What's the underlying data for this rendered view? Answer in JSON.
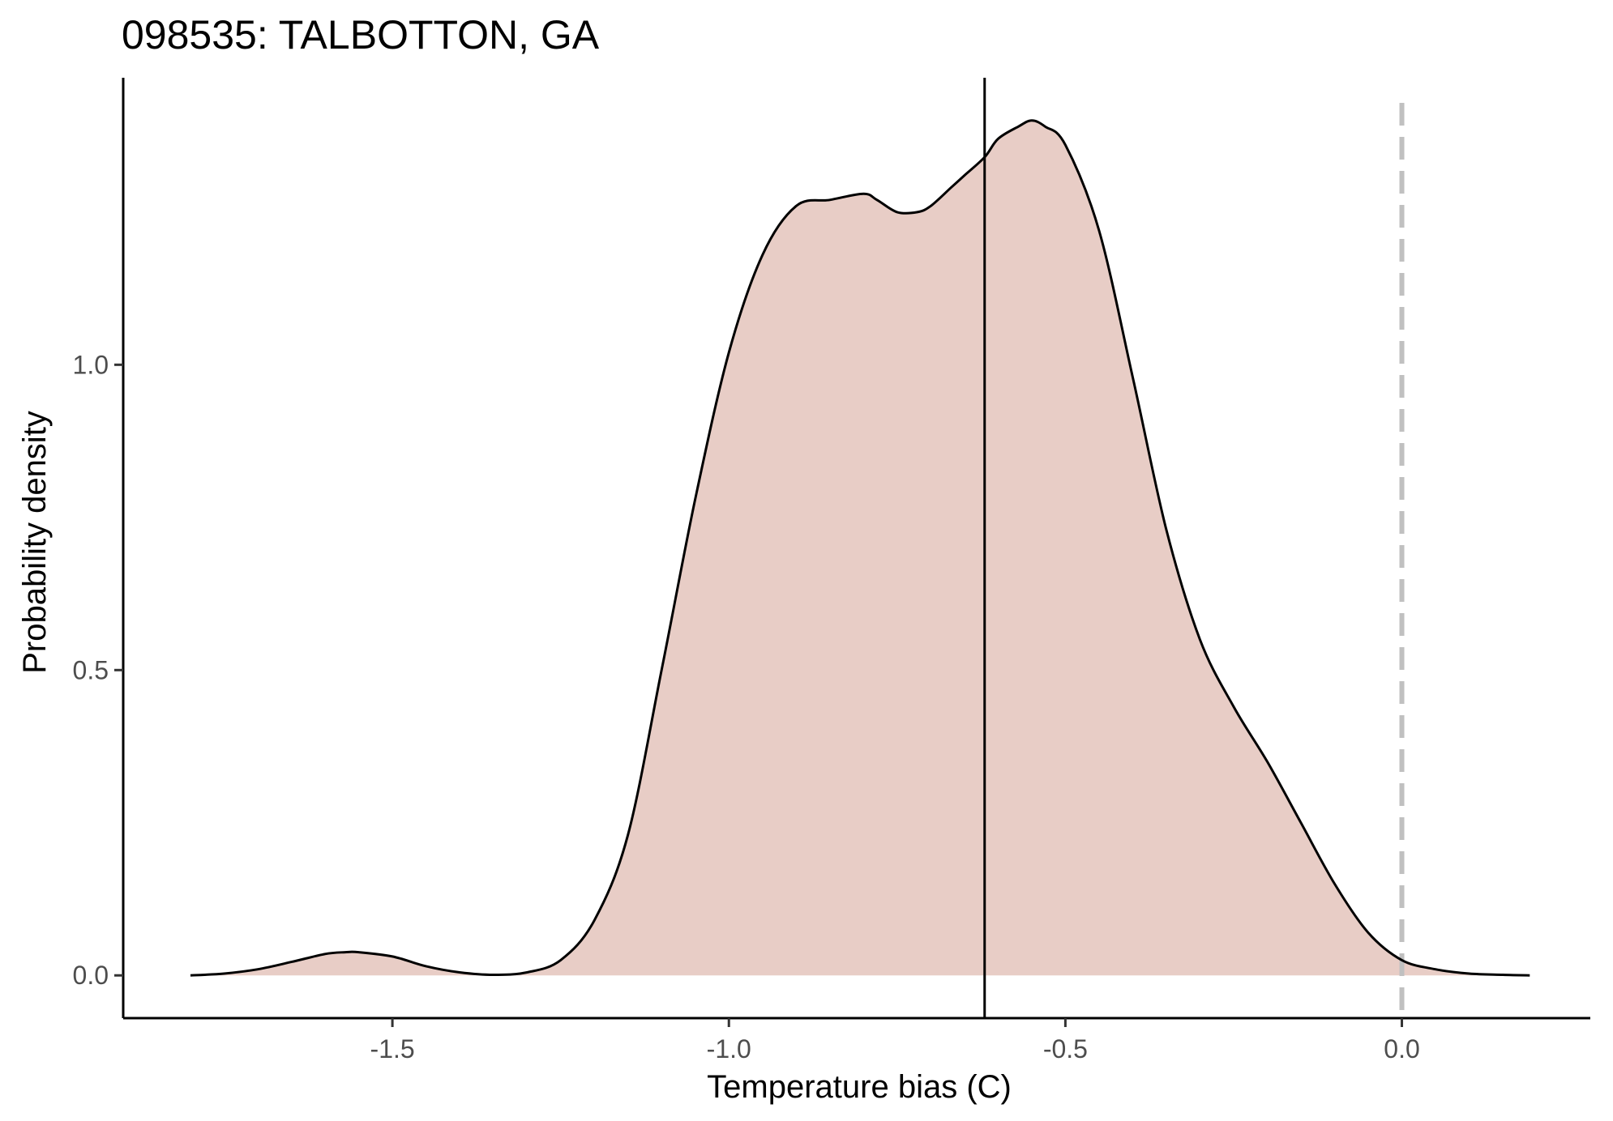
{
  "chart_data": {
    "type": "area",
    "title": "098535: TALBOTTON, GA",
    "xlabel": "Temperature bias (C)",
    "ylabel": "Probability density",
    "xlim": [
      -1.9,
      0.28
    ],
    "ylim": [
      -0.07,
      1.47
    ],
    "x_ticks": [
      -1.5,
      -1.0,
      -0.5,
      0.0
    ],
    "x_tick_labels": [
      "-1.5",
      "-1.0",
      "-0.5",
      "0.0"
    ],
    "y_ticks": [
      0.0,
      0.5,
      1.0
    ],
    "y_tick_labels": [
      "0.0",
      "0.5",
      "1.0"
    ],
    "grid": false,
    "legend": "none",
    "fill_color": "#e8cdc6",
    "line_color": "#000000",
    "reference_lines": [
      {
        "axis": "x",
        "value": -0.62,
        "style": "solid",
        "color": "#000000"
      },
      {
        "axis": "x",
        "value": 0.0,
        "style": "dashed",
        "color": "#c0c0c0"
      }
    ],
    "series": [
      {
        "x": [
          -1.8,
          -1.75,
          -1.7,
          -1.65,
          -1.6,
          -1.57,
          -1.55,
          -1.5,
          -1.45,
          -1.4,
          -1.35,
          -1.3,
          -1.25,
          -1.2,
          -1.15,
          -1.1,
          -1.05,
          -1.0,
          -0.95,
          -0.9,
          -0.85,
          -0.8,
          -0.78,
          -0.75,
          -0.72,
          -0.7,
          -0.67,
          -0.65,
          -0.62,
          -0.6,
          -0.57,
          -0.55,
          -0.53,
          -0.5,
          -0.45,
          -0.4,
          -0.35,
          -0.3,
          -0.25,
          -0.2,
          -0.15,
          -0.1,
          -0.05,
          0.0,
          0.05,
          0.1,
          0.15,
          0.19
        ],
        "y": [
          0.0,
          0.003,
          0.01,
          0.022,
          0.035,
          0.038,
          0.038,
          0.031,
          0.015,
          0.005,
          0.001,
          0.005,
          0.025,
          0.09,
          0.23,
          0.5,
          0.78,
          1.02,
          1.18,
          1.26,
          1.27,
          1.28,
          1.27,
          1.25,
          1.25,
          1.26,
          1.29,
          1.31,
          1.34,
          1.37,
          1.39,
          1.4,
          1.39,
          1.36,
          1.22,
          0.98,
          0.73,
          0.55,
          0.44,
          0.35,
          0.25,
          0.15,
          0.07,
          0.025,
          0.01,
          0.003,
          0.001,
          0.0
        ]
      }
    ]
  }
}
